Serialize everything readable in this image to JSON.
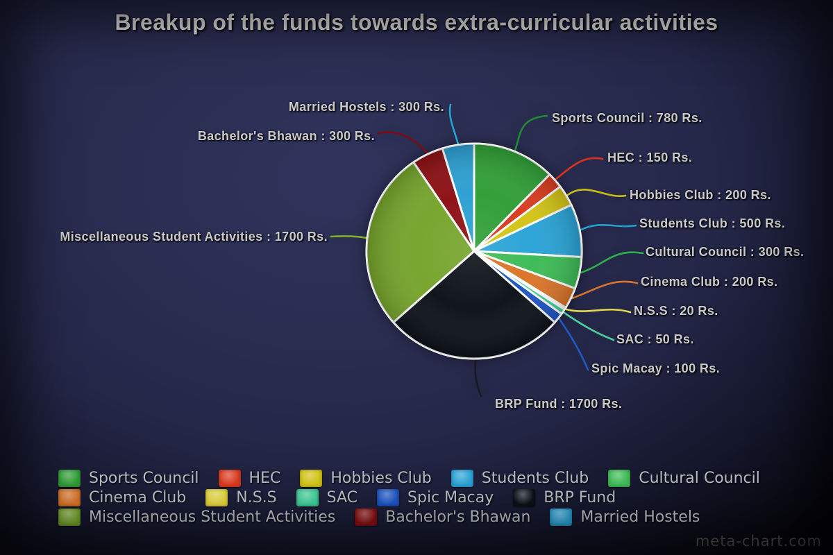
{
  "title": "Breakup of the funds towards extra-curricular activities",
  "watermark": "meta-chart.com",
  "chart_data": {
    "type": "pie",
    "title": "Breakup of the funds towards extra-curricular activities",
    "unit": "Rs.",
    "start_angle_deg": 0,
    "direction": "clockwise",
    "legend_position": "bottom",
    "slices": [
      {
        "label": "Sports Council",
        "value": 780,
        "color": "#2f9e35",
        "line_color": "#1f8c34",
        "callout": "Sports Council : 780 Rs."
      },
      {
        "label": "HEC",
        "value": 150,
        "color": "#d93a1e",
        "line_color": "#d5351c",
        "callout": "HEC : 150 Rs."
      },
      {
        "label": "Hobbies Club",
        "value": 200,
        "color": "#d2c414",
        "line_color": "#c9bd17",
        "callout": "Hobbies Club : 200 Rs."
      },
      {
        "label": "Students Club",
        "value": 500,
        "color": "#29a3d6",
        "line_color": "#22a0ce",
        "callout": "Students Club : 500 Rs."
      },
      {
        "label": "Cultural Council",
        "value": 300,
        "color": "#3cbb55",
        "line_color": "#2fae4e",
        "callout": "Cultural Council : 300 Rs."
      },
      {
        "label": "Cinema Club",
        "value": 200,
        "color": "#d97428",
        "line_color": "#d8752c",
        "callout": "Cinema Club : 200 Rs."
      },
      {
        "label": "N.S.S",
        "value": 20,
        "color": "#e5d63d",
        "line_color": "#e3d94f",
        "callout": "N.S.S : 20 Rs."
      },
      {
        "label": "SAC",
        "value": 50,
        "color": "#3ecf9a",
        "line_color": "#4ecf9e",
        "callout": "SAC : 50 Rs."
      },
      {
        "label": "Spic Macay",
        "value": 100,
        "color": "#1c55c4",
        "line_color": "#2257c4",
        "callout": "Spic Macay : 100 Rs."
      },
      {
        "label": "BRP Fund",
        "value": 1700,
        "color": "#0c1118",
        "line_color": "#151a22",
        "callout": "BRP Fund : 1700 Rs."
      },
      {
        "label": "Miscellaneous Student Activities",
        "value": 1700,
        "color": "#75a42b",
        "line_color": "#7fae2a",
        "callout": "Miscellaneous Student Activities : 1700 Rs."
      },
      {
        "label": "Bachelor's Bhawan",
        "value": 300,
        "color": "#8c0f13",
        "line_color": "#7d0b10",
        "callout": "Bachelor's Bhawan : 300 Rs."
      },
      {
        "label": "Married Hostels",
        "value": 300,
        "color": "#2b9fd2",
        "line_color": "#22a3cf",
        "callout": "Married Hostels : 300 Rs."
      }
    ]
  }
}
